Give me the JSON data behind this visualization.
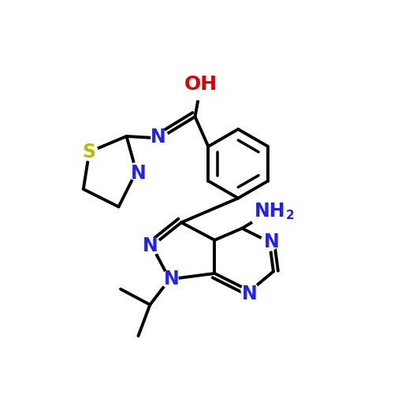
{
  "background_color": "#ffffff",
  "bond_color": "#000000",
  "bond_width": 2.8,
  "atom_colors": {
    "N": "#2222ee",
    "S": "#bbbb00",
    "O": "#dd0000",
    "C": "#000000"
  },
  "figsize": [
    5.0,
    5.0
  ],
  "dpi": 100
}
